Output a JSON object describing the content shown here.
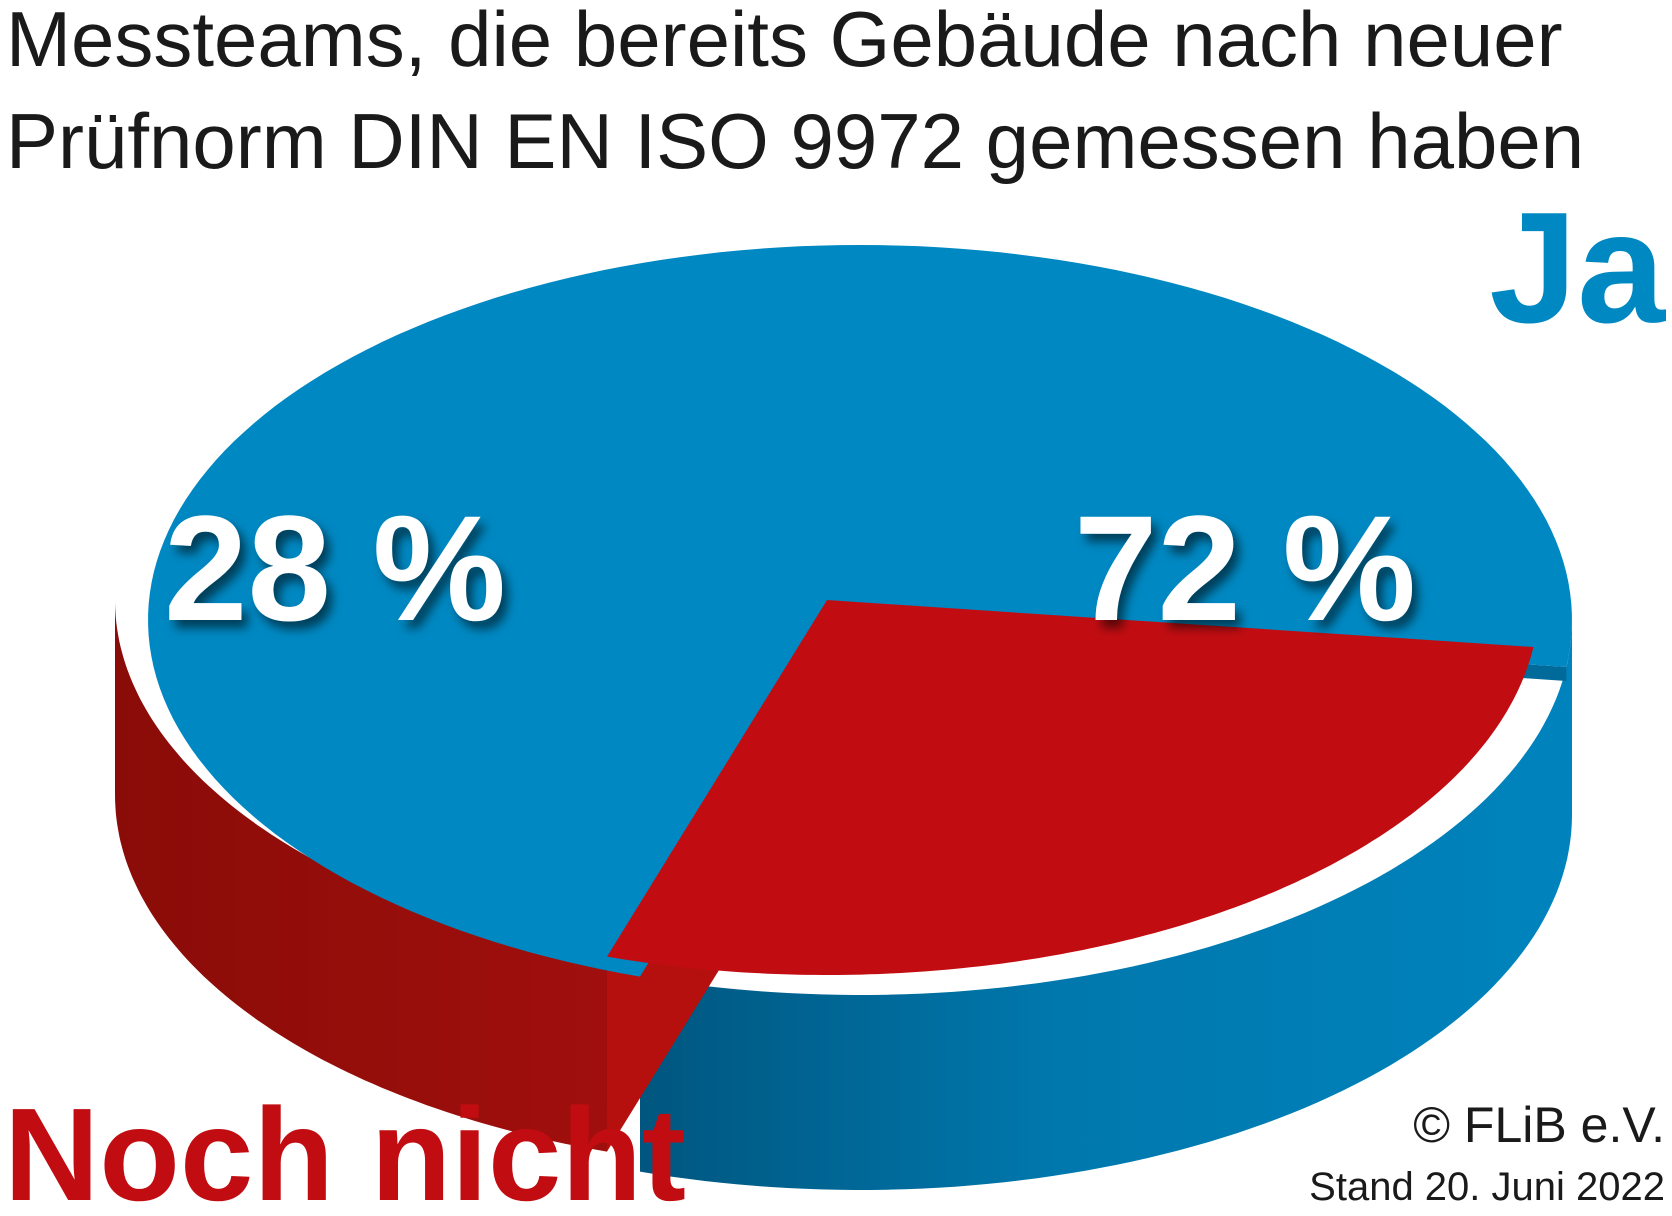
{
  "chart_data": {
    "type": "pie",
    "title_lines": [
      "Messteams, die bereits Gebäude nach neuer",
      "Prüfnorm DIN EN ISO 9972 gemessen haben"
    ],
    "slices": [
      {
        "label": "Ja",
        "value": 72,
        "value_label": "72 %",
        "color": "#0088c2"
      },
      {
        "label": "Noch nicht",
        "value": 28,
        "value_label": "28 %",
        "color": "#c10d12"
      }
    ]
  },
  "copyright": "© FLiB e.V.",
  "date_note": "Stand 20. Juni 2022"
}
